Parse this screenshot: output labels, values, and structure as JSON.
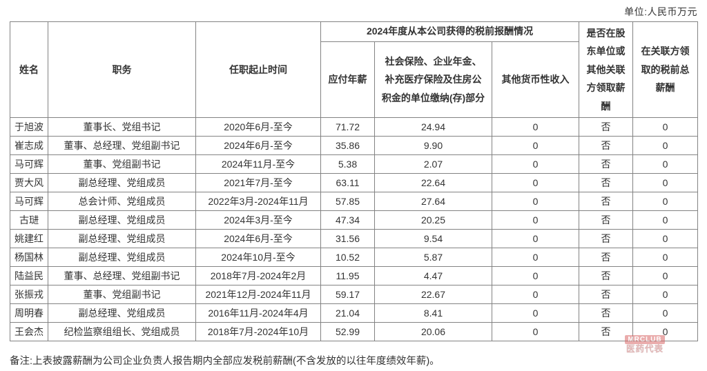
{
  "unit_label": "单位:人民币万元",
  "table": {
    "header": {
      "name": "姓名",
      "position": "职务",
      "tenure": "任职起止时间",
      "comp_group": "2024年度从本公司获得的税前报酬情况",
      "salary": "应付年薪",
      "insurance": "社会保险、企业年金、补充医疗保险及住房公积金的单位缴纳(存)部分",
      "other_income": "其他货币性收入",
      "related_party": "是否在股东单位或其他关联方领取薪酬",
      "related_total": "在关联方领取的税前总薪酬"
    },
    "rows": [
      {
        "name": "于旭波",
        "position": "董事长、党组书记",
        "tenure": "2020年6月-至今",
        "salary": "71.72",
        "insurance": "24.94",
        "other": "0",
        "related": "否",
        "related_total": "0"
      },
      {
        "name": "崔志成",
        "position": "董事、总经理、党组副书记",
        "tenure": "2024年6月-至今",
        "salary": "35.86",
        "insurance": "9.90",
        "other": "0",
        "related": "否",
        "related_total": "0"
      },
      {
        "name": "马可辉",
        "position": "董事、党组副书记",
        "tenure": "2024年11月-至今",
        "salary": "5.38",
        "insurance": "2.07",
        "other": "0",
        "related": "否",
        "related_total": "0"
      },
      {
        "name": "贾大风",
        "position": "副总经理、党组成员",
        "tenure": "2021年7月-至今",
        "salary": "63.11",
        "insurance": "22.64",
        "other": "0",
        "related": "否",
        "related_total": "0"
      },
      {
        "name": "马可辉",
        "position": "总会计师、党组成员",
        "tenure": "2022年3月-2024年11月",
        "salary": "57.85",
        "insurance": "27.64",
        "other": "0",
        "related": "否",
        "related_total": "0"
      },
      {
        "name": "古琎",
        "position": "副总经理、党组成员",
        "tenure": "2024年3月-至今",
        "salary": "47.34",
        "insurance": "20.25",
        "other": "0",
        "related": "否",
        "related_total": "0"
      },
      {
        "name": "姚建红",
        "position": "副总经理、党组成员",
        "tenure": "2024年6月-至今",
        "salary": "31.56",
        "insurance": "9.54",
        "other": "0",
        "related": "否",
        "related_total": "0"
      },
      {
        "name": "杨国林",
        "position": "副总经理、党组成员",
        "tenure": "2024年10月-至今",
        "salary": "10.52",
        "insurance": "5.87",
        "other": "0",
        "related": "否",
        "related_total": "0"
      },
      {
        "name": "陆益民",
        "position": "董事、总经理、党组副书记",
        "tenure": "2018年7月-2024年2月",
        "salary": "11.95",
        "insurance": "4.47",
        "other": "0",
        "related": "否",
        "related_total": "0"
      },
      {
        "name": "张振戎",
        "position": "董事、党组副书记",
        "tenure": "2021年12月-2024年11月",
        "salary": "59.17",
        "insurance": "22.67",
        "other": "0",
        "related": "否",
        "related_total": "0"
      },
      {
        "name": "周明春",
        "position": "副总经理、党组成员",
        "tenure": "2016年11月-2024年4月",
        "salary": "21.04",
        "insurance": "8.41",
        "other": "0",
        "related": "否",
        "related_total": "0"
      },
      {
        "name": "王会杰",
        "position": "纪检监察组组长、党组成员",
        "tenure": "2018年7月-2024年10月",
        "salary": "52.99",
        "insurance": "20.06",
        "other": "0",
        "related": "否",
        "related_total": "0"
      }
    ]
  },
  "note": "备注:上表披露薪酬为公司企业负责人报告期内全部应发税前薪酬(不含发放的以往年度绩效年薪)。",
  "watermark": {
    "line1": "MRCLUB",
    "line2": "医药代表"
  },
  "colors": {
    "text": "#333333",
    "border": "#828282",
    "watermark_badge": "#d96a6a",
    "watermark_text": "#cf7d7d",
    "background": "#ffffff"
  }
}
